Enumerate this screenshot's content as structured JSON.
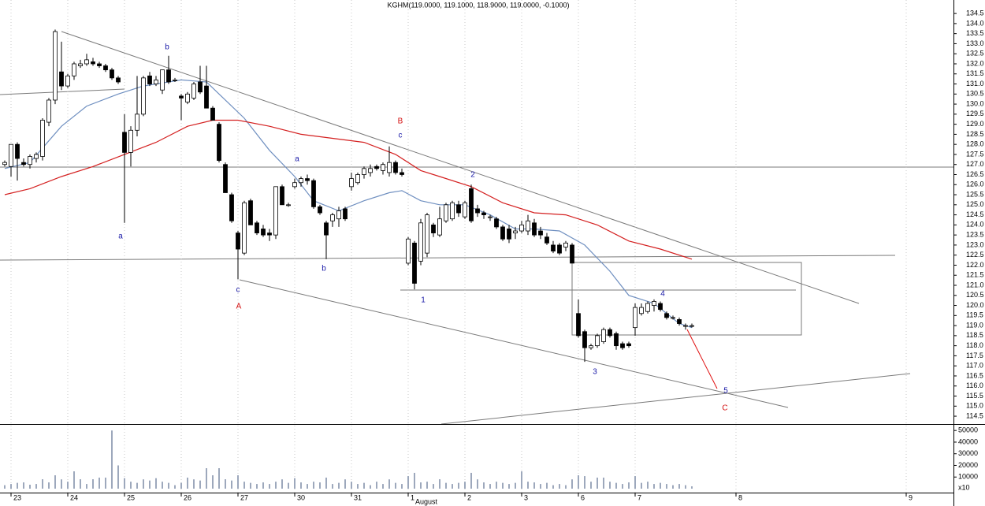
{
  "chart_data": [
    {
      "type": "candlestick",
      "title": "KGHM(119.0000, 119.1000, 118.9000, 119.0000, -0.1000)",
      "x": [
        0,
        1,
        2,
        3,
        4,
        5,
        6,
        7,
        8,
        9,
        10,
        11,
        12,
        13,
        14,
        15,
        16,
        17,
        18,
        19,
        20,
        21,
        22,
        23,
        24,
        25,
        26,
        27,
        28,
        29,
        30,
        31,
        32,
        33,
        34,
        35,
        36,
        37,
        38,
        39,
        40,
        41,
        42,
        43,
        44,
        45,
        46,
        47,
        48,
        49,
        50,
        51,
        52,
        53,
        54,
        55,
        56,
        57,
        58,
        59,
        60,
        61,
        62,
        63,
        64,
        65,
        66,
        67,
        68,
        69,
        70,
        71,
        72,
        73,
        74,
        75,
        76,
        77,
        78,
        79,
        80,
        81,
        82,
        83,
        84,
        85,
        86,
        87,
        88,
        89,
        90,
        91,
        92,
        93,
        94,
        95,
        96,
        97,
        98,
        99,
        100,
        101,
        102,
        103,
        104,
        105,
        106,
        107,
        108,
        109
      ],
      "open": [
        127.0,
        126.9,
        128.0,
        127.1,
        127.0,
        127.3,
        127.4,
        129.1,
        130.2,
        131.6,
        130.9,
        131.4,
        131.9,
        132.0,
        132.1,
        132.0,
        131.9,
        131.7,
        131.3,
        128.6,
        127.6,
        128.7,
        129.5,
        131.4,
        131.0,
        130.7,
        131.7,
        131.2,
        130.4,
        130.1,
        130.3,
        131.1,
        130.9,
        129.8,
        129.0,
        127.0,
        125.5,
        123.6,
        122.6,
        125.2,
        124.1,
        123.8,
        123.6,
        123.5,
        125.9,
        125.0,
        125.9,
        126.1,
        126.3,
        126.2,
        124.9,
        124.1,
        124.2,
        124.3,
        124.8,
        125.9,
        126.1,
        126.5,
        126.6,
        126.9,
        126.7,
        126.6,
        127.1,
        126.6,
        122.1,
        123.1,
        122.2,
        122.6,
        124.0,
        123.5,
        124.2,
        124.3,
        125.0,
        124.4,
        125.8,
        124.8,
        124.6,
        124.4,
        124.3,
        123.9,
        123.8,
        123.6,
        123.7,
        123.7,
        124.1,
        123.7,
        123.4,
        123.0,
        123.0,
        122.9,
        123.0,
        119.6,
        118.7,
        117.9,
        118.0,
        118.2,
        118.8,
        118.6,
        118.1,
        118.1,
        118.9,
        119.6,
        119.7,
        120.0,
        120.1,
        119.6,
        119.4,
        119.3,
        119.0,
        119.0
      ],
      "high": [
        127.2,
        128.0,
        128.1,
        127.3,
        127.5,
        127.6,
        129.3,
        130.3,
        133.7,
        133.1,
        131.5,
        132.1,
        132.2,
        132.5,
        132.3,
        132.1,
        132.0,
        131.8,
        131.4,
        129.5,
        128.9,
        131.4,
        131.4,
        131.6,
        131.4,
        131.7,
        132.4,
        131.3,
        130.5,
        130.6,
        131.1,
        131.9,
        131.9,
        129.9,
        129.1,
        127.1,
        125.6,
        123.7,
        125.2,
        125.3,
        124.2,
        124.0,
        123.8,
        125.9,
        126.0,
        125.1,
        126.3,
        126.4,
        126.5,
        126.3,
        125.0,
        124.2,
        124.6,
        124.9,
        124.9,
        126.6,
        126.6,
        126.9,
        127.0,
        127.0,
        127.1,
        127.9,
        127.2,
        126.8,
        123.4,
        123.2,
        124.3,
        124.6,
        124.1,
        124.9,
        125.1,
        125.2,
        125.2,
        125.2,
        126.0,
        125.0,
        124.7,
        124.5,
        124.4,
        124.0,
        124.0,
        123.9,
        124.2,
        124.5,
        124.3,
        123.9,
        123.6,
        123.2,
        123.1,
        123.2,
        123.1,
        120.3,
        118.8,
        118.1,
        118.6,
        118.9,
        118.9,
        118.7,
        118.2,
        118.2,
        120.1,
        120.1,
        120.2,
        120.3,
        120.2,
        119.7,
        119.5,
        119.4,
        119.1,
        119.1
      ],
      "low": [
        126.9,
        126.4,
        126.2,
        126.9,
        126.8,
        127.1,
        127.2,
        128.9,
        130.0,
        130.7,
        130.8,
        131.2,
        131.8,
        131.9,
        131.9,
        131.8,
        131.6,
        131.2,
        131.0,
        124.1,
        126.9,
        128.4,
        129.4,
        130.9,
        130.9,
        130.5,
        131.0,
        131.1,
        129.2,
        130.0,
        130.2,
        130.5,
        129.8,
        129.2,
        127.1,
        125.6,
        124.1,
        121.3,
        122.5,
        124.0,
        123.5,
        123.4,
        123.2,
        123.3,
        125.0,
        124.9,
        125.8,
        125.9,
        126.0,
        124.8,
        124.5,
        122.3,
        123.9,
        123.9,
        124.2,
        125.7,
        126.0,
        126.3,
        126.4,
        126.7,
        126.5,
        126.4,
        126.5,
        126.4,
        122.0,
        120.8,
        122.0,
        122.4,
        123.4,
        123.4,
        124.1,
        124.2,
        124.4,
        124.3,
        124.1,
        124.4,
        124.3,
        124.2,
        123.8,
        123.2,
        123.1,
        123.3,
        123.6,
        123.5,
        123.4,
        123.3,
        123.0,
        122.6,
        122.5,
        122.7,
        122.1,
        118.4,
        117.2,
        117.8,
        117.9,
        118.1,
        118.4,
        117.8,
        117.8,
        117.9,
        118.5,
        119.5,
        119.6,
        119.7,
        119.7,
        119.3,
        119.3,
        119.0,
        118.8,
        118.9
      ],
      "close": [
        127.1,
        128.0,
        127.3,
        127.0,
        127.4,
        127.5,
        129.2,
        130.2,
        133.6,
        130.9,
        131.4,
        132.0,
        132.0,
        132.2,
        132.0,
        131.9,
        131.7,
        131.3,
        131.1,
        127.6,
        128.7,
        129.5,
        131.3,
        131.0,
        131.2,
        131.7,
        131.1,
        131.2,
        130.3,
        130.5,
        131.0,
        130.6,
        129.8,
        129.2,
        127.2,
        125.6,
        124.2,
        122.8,
        125.1,
        124.0,
        123.6,
        123.5,
        123.5,
        125.9,
        125.0,
        125.0,
        126.1,
        126.3,
        126.2,
        124.9,
        124.6,
        123.5,
        124.5,
        124.7,
        124.3,
        126.3,
        126.5,
        126.8,
        126.8,
        126.8,
        127.0,
        127.1,
        126.6,
        126.5,
        123.3,
        121.1,
        124.1,
        124.5,
        123.6,
        124.3,
        125.0,
        125.1,
        124.6,
        125.1,
        124.2,
        124.6,
        124.5,
        124.4,
        123.9,
        123.3,
        123.3,
        123.7,
        124.0,
        124.2,
        123.5,
        123.5,
        123.1,
        122.7,
        122.6,
        123.1,
        122.1,
        118.5,
        117.9,
        118.0,
        118.5,
        118.8,
        118.5,
        118.0,
        117.9,
        118.0,
        119.9,
        119.9,
        120.1,
        120.2,
        119.8,
        119.4,
        119.4,
        119.1,
        119.0,
        119.0
      ],
      "up_color": "#ffffff",
      "down_color": "#000000",
      "outline_color": "#000000",
      "lines": [
        {
          "color": "#6f8fc0",
          "x": [
            0,
            4,
            9,
            13,
            18,
            22,
            28,
            32,
            34,
            38,
            42,
            46,
            49,
            53,
            57,
            61,
            63,
            66,
            69,
            73,
            77,
            81,
            84,
            88,
            92,
            96,
            99,
            103,
            107,
            109
          ],
          "values": [
            126.8,
            127.1,
            128.9,
            129.9,
            130.5,
            130.9,
            131.2,
            131.1,
            130.5,
            129.3,
            127.7,
            126.4,
            125.2,
            124.7,
            125.2,
            125.6,
            125.7,
            125.2,
            125.0,
            125.0,
            124.5,
            123.8,
            123.8,
            123.7,
            123.0,
            121.7,
            120.5,
            120.1,
            119.1,
            118.9
          ]
        },
        {
          "color": "#d42020",
          "x": [
            0,
            4,
            9,
            14,
            19,
            24,
            29,
            33,
            37,
            42,
            47,
            52,
            57,
            62,
            66,
            69,
            74,
            79,
            84,
            89,
            94,
            99,
            104,
            109
          ],
          "values": [
            125.5,
            125.8,
            126.4,
            126.9,
            127.5,
            128.1,
            128.9,
            129.2,
            129.2,
            128.9,
            128.5,
            128.3,
            128.1,
            127.5,
            126.7,
            126.4,
            125.9,
            125.1,
            124.6,
            124.5,
            124.0,
            123.2,
            122.8,
            122.3
          ]
        }
      ],
      "annotations": [
        {
          "text": "a",
          "color": "#1a1aa8"
        },
        {
          "text": "b",
          "color": "#1a1aa8"
        },
        {
          "text": "c",
          "color": "#1a1aa8"
        },
        {
          "text": "A",
          "color": "#d41010"
        },
        {
          "text": "a",
          "color": "#1a1aa8"
        },
        {
          "text": "b",
          "color": "#1a1aa8"
        },
        {
          "text": "B",
          "color": "#d41010"
        },
        {
          "text": "c",
          "color": "#1a1aa8"
        },
        {
          "text": "1",
          "color": "#1a1aa8"
        },
        {
          "text": "2",
          "color": "#1a1aa8"
        },
        {
          "text": "3",
          "color": "#1a1aa8"
        },
        {
          "text": "4",
          "color": "#1a1aa8"
        },
        {
          "text": "5",
          "color": "#1a1aa8"
        },
        {
          "text": "C",
          "color": "#d41010"
        }
      ],
      "xlim": [
        -0.75,
        150.5
      ],
      "xticks": [
        {
          "value": 1,
          "label": "23"
        },
        {
          "value": 10,
          "label": "24"
        },
        {
          "value": 19,
          "label": "25"
        },
        {
          "value": 28,
          "label": "26"
        },
        {
          "value": 37,
          "label": "27"
        },
        {
          "value": 46,
          "label": "30"
        },
        {
          "value": 55,
          "label": "31"
        },
        {
          "value": 64,
          "label": "1"
        },
        {
          "value": 73,
          "label": "2"
        },
        {
          "value": 82,
          "label": "3"
        },
        {
          "value": 91,
          "label": "6"
        },
        {
          "value": 100,
          "label": "7"
        },
        {
          "value": 116,
          "label": "8"
        },
        {
          "value": 143,
          "label": "9"
        }
      ],
      "month_label": "August",
      "grid": true,
      "ylim": [
        114.15,
        135.17
      ],
      "yticks": [
        114.5,
        {
          "value": 115,
          "label": "115.0"
        },
        115.5,
        {
          "value": 116,
          "label": "116.0"
        },
        116.5,
        {
          "value": 117,
          "label": "117.0"
        },
        117.5,
        {
          "value": 118,
          "label": "118.0"
        },
        118.5,
        {
          "value": 119,
          "label": "119.0"
        },
        119.5,
        {
          "value": 120,
          "label": "120.0"
        },
        120.5,
        {
          "value": 121,
          "label": "121.0"
        },
        121.5,
        {
          "value": 122,
          "label": "122.0"
        },
        122.5,
        {
          "value": 123,
          "label": "123.0"
        },
        123.5,
        {
          "value": 124,
          "label": "124.0"
        },
        124.5,
        {
          "value": 125,
          "label": "125.0"
        },
        125.5,
        {
          "value": 126,
          "label": "126.0"
        },
        126.5,
        {
          "value": 127,
          "label": "127.0"
        },
        127.5,
        {
          "value": 128,
          "label": "128.0"
        },
        128.5,
        {
          "value": 129,
          "label": "129.0"
        },
        129.5,
        {
          "value": 130,
          "label": "130.0"
        },
        130.5,
        {
          "value": 131,
          "label": "131.0"
        },
        131.5,
        {
          "value": 132,
          "label": "132.0"
        },
        132.5,
        {
          "value": 133,
          "label": "133.0"
        },
        133.5,
        {
          "value": 134,
          "label": "134.0"
        },
        134.5
      ]
    },
    {
      "type": "bar",
      "values": [
        3000,
        4000,
        5000,
        5400,
        3400,
        4000,
        8100,
        5400,
        11500,
        8000,
        6000,
        14900,
        8100,
        4000,
        8100,
        9500,
        9500,
        50000,
        20000,
        9000,
        6000,
        5000,
        8000,
        7000,
        9000,
        6000,
        5000,
        3000,
        5000,
        9500,
        8000,
        7000,
        17600,
        11500,
        17600,
        8100,
        7000,
        11500,
        6000,
        5000,
        4000,
        5400,
        4000,
        6000,
        8000,
        5000,
        9000,
        5400,
        4000,
        6000,
        5400,
        9500,
        4000,
        5000,
        8000,
        6000,
        4000,
        5000,
        3000,
        6000,
        4000,
        8000,
        5000,
        4000,
        10800,
        13600,
        5400,
        6000,
        4000,
        8100,
        5000,
        4000,
        5000,
        6000,
        13600,
        8000,
        5400,
        4000,
        6000,
        5000,
        4000,
        5000,
        14900,
        6000,
        5400,
        4000,
        5000,
        3000,
        4000,
        3000,
        8000,
        11500,
        10800,
        6000,
        9500,
        9500,
        6000,
        5000,
        4000,
        5400,
        10800,
        5000,
        6000,
        4000,
        5000,
        4000,
        3000,
        4000,
        3000,
        2000
      ],
      "color": "#7d8ca6",
      "unit_label": "x10",
      "ylim": [
        0,
        54200
      ],
      "yticks": [
        10000,
        20000,
        30000,
        40000,
        50000
      ]
    }
  ]
}
